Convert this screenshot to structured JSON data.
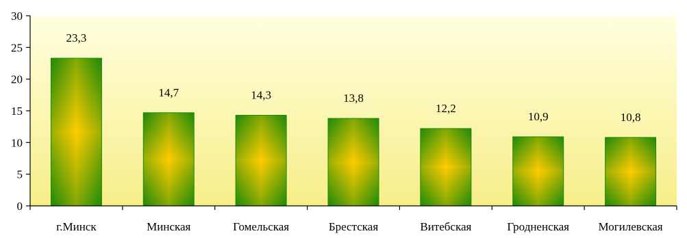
{
  "chart_data": {
    "type": "bar",
    "categories": [
      "г.Минск",
      "Минская",
      "Гомельская",
      "Брестская",
      "Витебская",
      "Гродненская",
      "Могилевская"
    ],
    "values": [
      23.3,
      14.7,
      14.3,
      13.8,
      12.2,
      10.9,
      10.8
    ],
    "value_labels": [
      "23,3",
      "14,7",
      "14,3",
      "13,8",
      "12,2",
      "10,9",
      "10,8"
    ],
    "ylim": [
      0,
      30
    ],
    "yticks": [
      0,
      5,
      10,
      15,
      20,
      25,
      30
    ],
    "ytick_labels": [
      "0",
      "5",
      "10",
      "15",
      "20",
      "25",
      "30"
    ],
    "grid": false,
    "legend": "none",
    "colors": {
      "plot_bg_top": "#ffffe0",
      "plot_bg_bottom": "#f8ee88",
      "bar_edge": "#1e8a0a",
      "bar_center": "#ffcc00",
      "axis": "#000000"
    }
  }
}
